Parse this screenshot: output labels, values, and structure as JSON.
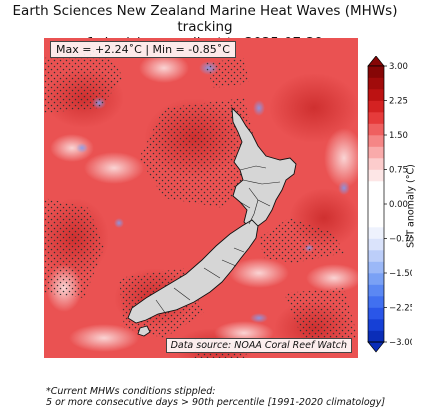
{
  "title": {
    "line1": "Earth Sciences New Zealand Marine Heat Waves (MHWs) tracking",
    "line2": "1 day(s) anomalies* to 2025-07-29"
  },
  "stats": {
    "label": "Max = +2.24˚C | Min = -0.85˚C",
    "max": 2.24,
    "min": -0.85,
    "unit": "˚C"
  },
  "source": "Data source: NOAA Coral Reef Watch",
  "colorbar": {
    "label": "SST anomaly (°C)",
    "min": -3.0,
    "max": 3.0,
    "step": 0.25,
    "ticks": [
      "3.00",
      "2.25",
      "1.50",
      "0.75",
      "0.00",
      "−0.75",
      "−1.50",
      "−2.25",
      "−3.00"
    ],
    "colors": [
      "#0a2db8",
      "#1640d6",
      "#2a56e8",
      "#4170f0",
      "#5b88f3",
      "#7aa1f5",
      "#9bb8f7",
      "#bccef9",
      "#dae3fb",
      "#eef2fd",
      "#ffffff",
      "#ffffff",
      "#ffffff",
      "#ffffff",
      "#fde6e6",
      "#fccccc",
      "#f9aaaa",
      "#f58686",
      "#ef6060",
      "#e63b3b",
      "#d42222",
      "#bc1212",
      "#a10b0b",
      "#860606"
    ]
  },
  "footnote": {
    "line1": "*Current MHWs conditions stippled:",
    "line2": "5 or more consecutive days > 90th percentile [1991-2020 climatology]"
  }
}
